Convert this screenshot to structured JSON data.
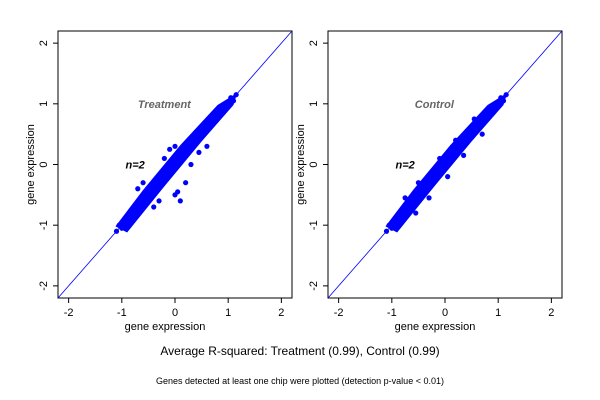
{
  "chart_data": [
    {
      "type": "scatter",
      "panel_label": "Treatment",
      "annotation": "n=2",
      "xlabel": "gene expression",
      "ylabel": "gene expression",
      "xlim": [
        -2.2,
        2.2
      ],
      "ylim": [
        -2.2,
        2.2
      ],
      "xticks": [
        -2,
        -1,
        0,
        1,
        2
      ],
      "yticks": [
        -2,
        -1,
        0,
        1,
        2
      ],
      "reference_line": "y = x",
      "point_color": "#0000ff",
      "line_color": "#0000ff",
      "points": [
        [
          -1.1,
          -1.1
        ],
        [
          -1.05,
          -1.0
        ],
        [
          -1.0,
          -1.05
        ],
        [
          -0.95,
          -0.9
        ],
        [
          -0.9,
          -0.95
        ],
        [
          -0.85,
          -0.8
        ],
        [
          -0.8,
          -0.85
        ],
        [
          -0.75,
          -0.7
        ],
        [
          -0.7,
          -0.75
        ],
        [
          -0.65,
          -0.6
        ],
        [
          -0.6,
          -0.65
        ],
        [
          -0.55,
          -0.5
        ],
        [
          -0.5,
          -0.55
        ],
        [
          -0.45,
          -0.4
        ],
        [
          -0.4,
          -0.45
        ],
        [
          -0.35,
          -0.3
        ],
        [
          -0.3,
          -0.35
        ],
        [
          -0.25,
          -0.2
        ],
        [
          -0.2,
          -0.25
        ],
        [
          -0.15,
          -0.1
        ],
        [
          -0.1,
          -0.15
        ],
        [
          -0.05,
          0.0
        ],
        [
          0.0,
          -0.05
        ],
        [
          0.05,
          0.1
        ],
        [
          0.1,
          0.05
        ],
        [
          0.15,
          0.2
        ],
        [
          0.2,
          0.15
        ],
        [
          0.25,
          0.3
        ],
        [
          0.3,
          0.25
        ],
        [
          0.35,
          0.4
        ],
        [
          0.4,
          0.35
        ],
        [
          0.45,
          0.5
        ],
        [
          0.5,
          0.45
        ],
        [
          0.55,
          0.6
        ],
        [
          0.6,
          0.55
        ],
        [
          0.65,
          0.7
        ],
        [
          0.7,
          0.65
        ],
        [
          0.75,
          0.8
        ],
        [
          0.8,
          0.75
        ],
        [
          0.85,
          0.9
        ],
        [
          0.9,
          0.85
        ],
        [
          0.95,
          1.0
        ],
        [
          1.0,
          0.95
        ],
        [
          1.05,
          1.1
        ],
        [
          1.1,
          1.05
        ],
        [
          1.15,
          1.15
        ],
        [
          -0.6,
          -0.3
        ],
        [
          -0.4,
          -0.7
        ],
        [
          0.0,
          0.3
        ],
        [
          0.2,
          -0.3
        ],
        [
          0.05,
          -0.45
        ],
        [
          0.1,
          -0.6
        ],
        [
          -0.2,
          0.1
        ],
        [
          0.3,
          0.0
        ],
        [
          -0.3,
          -0.6
        ],
        [
          0.45,
          0.2
        ],
        [
          -0.1,
          0.25
        ],
        [
          0.0,
          -0.5
        ],
        [
          0.6,
          0.3
        ],
        [
          -0.7,
          -0.4
        ]
      ]
    },
    {
      "type": "scatter",
      "panel_label": "Control",
      "annotation": "n=2",
      "xlabel": "gene expression",
      "ylabel": "gene expression",
      "xlim": [
        -2.2,
        2.2
      ],
      "ylim": [
        -2.2,
        2.2
      ],
      "xticks": [
        -2,
        -1,
        0,
        1,
        2
      ],
      "yticks": [
        -2,
        -1,
        0,
        1,
        2
      ],
      "reference_line": "y = x",
      "point_color": "#0000ff",
      "line_color": "#0000ff",
      "points": [
        [
          -1.1,
          -1.1
        ],
        [
          -1.05,
          -1.0
        ],
        [
          -1.0,
          -1.05
        ],
        [
          -0.95,
          -0.9
        ],
        [
          -0.9,
          -0.95
        ],
        [
          -0.85,
          -0.8
        ],
        [
          -0.8,
          -0.85
        ],
        [
          -0.75,
          -0.7
        ],
        [
          -0.7,
          -0.75
        ],
        [
          -0.65,
          -0.6
        ],
        [
          -0.6,
          -0.65
        ],
        [
          -0.55,
          -0.5
        ],
        [
          -0.5,
          -0.55
        ],
        [
          -0.45,
          -0.4
        ],
        [
          -0.4,
          -0.45
        ],
        [
          -0.35,
          -0.3
        ],
        [
          -0.3,
          -0.35
        ],
        [
          -0.25,
          -0.2
        ],
        [
          -0.2,
          -0.25
        ],
        [
          -0.15,
          -0.1
        ],
        [
          -0.1,
          -0.15
        ],
        [
          -0.05,
          0.0
        ],
        [
          0.0,
          -0.05
        ],
        [
          0.05,
          0.1
        ],
        [
          0.1,
          0.05
        ],
        [
          0.15,
          0.2
        ],
        [
          0.2,
          0.15
        ],
        [
          0.25,
          0.3
        ],
        [
          0.3,
          0.25
        ],
        [
          0.35,
          0.4
        ],
        [
          0.4,
          0.35
        ],
        [
          0.45,
          0.5
        ],
        [
          0.5,
          0.45
        ],
        [
          0.55,
          0.6
        ],
        [
          0.6,
          0.55
        ],
        [
          0.65,
          0.7
        ],
        [
          0.7,
          0.65
        ],
        [
          0.75,
          0.8
        ],
        [
          0.8,
          0.75
        ],
        [
          0.85,
          0.9
        ],
        [
          0.9,
          0.85
        ],
        [
          0.95,
          1.0
        ],
        [
          1.0,
          0.95
        ],
        [
          1.05,
          1.1
        ],
        [
          1.1,
          1.05
        ],
        [
          1.15,
          1.15
        ],
        [
          -0.5,
          -0.3
        ],
        [
          -0.3,
          -0.55
        ],
        [
          0.2,
          0.4
        ],
        [
          0.35,
          0.15
        ],
        [
          -0.1,
          0.1
        ],
        [
          0.05,
          -0.2
        ],
        [
          -0.75,
          -0.55
        ],
        [
          -0.55,
          -0.8
        ],
        [
          0.55,
          0.75
        ],
        [
          0.7,
          0.5
        ]
      ]
    }
  ],
  "captions": {
    "main": "Average R-squared: Treatment (0.99), Control (0.99)",
    "sub": "Genes detected at least one chip were plotted (detection p-value < 0.01)"
  }
}
